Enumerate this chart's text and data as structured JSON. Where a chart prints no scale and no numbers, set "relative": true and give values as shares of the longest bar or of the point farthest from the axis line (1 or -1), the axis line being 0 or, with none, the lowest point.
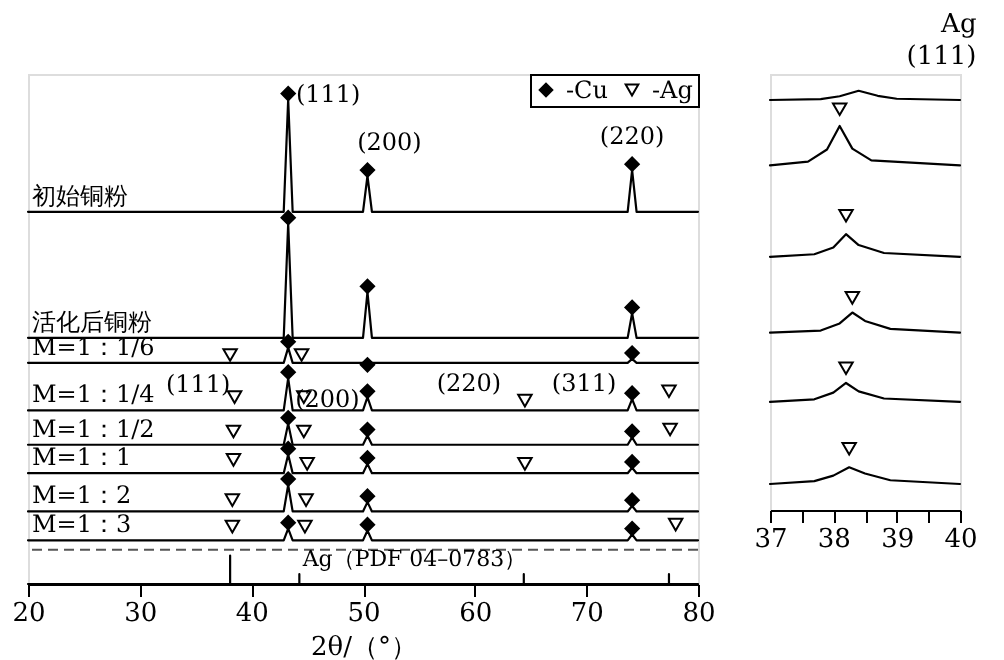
{
  "chart_data": [
    {
      "type": "line",
      "relative": true,
      "xlabel": "2θ/（°）",
      "xlim": [
        20,
        80
      ],
      "xticks": [
        20,
        30,
        40,
        50,
        60,
        70,
        80
      ],
      "tick_labels": "x",
      "grid": false,
      "legend": "top right",
      "line_style": "solid",
      "series": [
        {
          "name": "初始铜粉",
          "color": "#000000",
          "x": [
            20,
            42.9,
            43.3,
            43.7,
            50.0,
            50.4,
            50.8,
            73.7,
            74.1,
            74.5,
            80
          ],
          "values": [
            0.759,
            0.759,
            0.988,
            0.759,
            0.759,
            0.832,
            0.759,
            0.759,
            0.844,
            0.759,
            0.759
          ]
        },
        {
          "name": "活化后铜粉",
          "color": "#000000",
          "x": [
            20,
            42.9,
            43.3,
            43.7,
            50.0,
            50.4,
            50.8,
            73.7,
            74.1,
            74.5,
            80
          ],
          "values": [
            0.502,
            0.502,
            0.735,
            0.502,
            0.502,
            0.595,
            0.502,
            0.502,
            0.552,
            0.502,
            0.502
          ]
        },
        {
          "name": "M=1：1/6",
          "color": "#000000",
          "x": [
            20,
            42.9,
            43.3,
            43.7,
            50.0,
            50.4,
            50.8,
            73.7,
            74.1,
            74.5,
            80
          ],
          "values": [
            0.451,
            0.451,
            0.482,
            0.451,
            0.451,
            0.455,
            0.451,
            0.451,
            0.459,
            0.451,
            0.451
          ]
        },
        {
          "name": "M=1：1/4",
          "color": "#000000",
          "x": [
            20,
            42.9,
            43.3,
            43.7,
            50.0,
            50.4,
            50.8,
            73.7,
            74.1,
            74.5,
            80
          ],
          "values": [
            0.354,
            0.354,
            0.42,
            0.354,
            0.354,
            0.381,
            0.354,
            0.354,
            0.377,
            0.354,
            0.354
          ]
        },
        {
          "name": "M=1：1/2",
          "color": "#000000",
          "x": [
            20,
            42.9,
            43.3,
            43.7,
            50.0,
            50.4,
            50.8,
            73.7,
            74.1,
            74.5,
            80
          ],
          "values": [
            0.284,
            0.284,
            0.327,
            0.284,
            0.284,
            0.303,
            0.284,
            0.284,
            0.299,
            0.284,
            0.284
          ]
        },
        {
          "name": "M=1：1",
          "color": "#000000",
          "x": [
            20,
            42.9,
            43.3,
            43.7,
            50.0,
            50.4,
            50.8,
            73.7,
            74.1,
            74.5,
            80
          ],
          "values": [
            0.226,
            0.226,
            0.264,
            0.226,
            0.226,
            0.245,
            0.226,
            0.226,
            0.237,
            0.226,
            0.226
          ]
        },
        {
          "name": "M=1：2",
          "color": "#000000",
          "x": [
            20,
            42.9,
            43.3,
            43.7,
            50.0,
            50.4,
            50.8,
            73.7,
            74.1,
            74.5,
            80
          ],
          "values": [
            0.148,
            0.148,
            0.202,
            0.148,
            0.148,
            0.167,
            0.148,
            0.148,
            0.159,
            0.148,
            0.148
          ]
        },
        {
          "name": "M=1：3",
          "color": "#000000",
          "x": [
            20,
            42.9,
            43.3,
            43.7,
            50.0,
            50.4,
            50.8,
            73.7,
            74.1,
            74.5,
            80
          ],
          "values": [
            0.089,
            0.089,
            0.113,
            0.089,
            0.089,
            0.109,
            0.089,
            0.089,
            0.101,
            0.089,
            0.089
          ]
        },
        {
          "color": "#000000",
          "x": [
            20,
            38.1,
            38.1,
            38.1,
            44.3,
            44.3,
            44.3,
            64.4,
            64.4,
            64.4,
            77.4,
            77.4,
            77.4,
            80
          ],
          "values": [
            0,
            0,
            0.058,
            0,
            0,
            0.02,
            0,
            0,
            0.02,
            0,
            0,
            0.02,
            0,
            0
          ]
        },
        {
          "name": "-Cu",
          "type": "scatter",
          "marker": "diamond",
          "color": "#000000",
          "x": [
            43.3,
            50.4,
            74.1,
            43.3,
            50.4,
            74.1,
            43.3,
            50.4,
            74.1,
            43.3,
            50.4,
            74.1,
            43.3,
            50.4,
            74.1,
            43.3,
            50.4,
            74.1,
            43.3,
            50.4,
            74.1,
            43.3,
            50.4,
            74.1
          ],
          "values": [
            1.0,
            0.844,
            0.856,
            0.747,
            0.607,
            0.564,
            0.494,
            0.447,
            0.471,
            0.432,
            0.393,
            0.389,
            0.339,
            0.315,
            0.311,
            0.276,
            0.257,
            0.249,
            0.214,
            0.179,
            0.171,
            0.125,
            0.121,
            0.113
          ]
        },
        {
          "name": "-Ag",
          "type": "scatter",
          "marker": "triangle",
          "color": "#000000",
          "x": [
            38.1,
            44.5,
            38.5,
            44.7,
            64.5,
            77.4,
            38.4,
            44.7,
            77.5,
            38.4,
            45.0,
            64.5,
            38.3,
            44.9,
            38.3,
            44.8,
            78.0
          ],
          "values": [
            0.467,
            0.467,
            0.381,
            0.381,
            0.374,
            0.393,
            0.311,
            0.311,
            0.315,
            0.253,
            0.245,
            0.245,
            0.171,
            0.171,
            0.117,
            0.117,
            0.121
          ]
        }
      ],
      "ref_lines": [
        {
          "axis": "y",
          "value": 0.07,
          "line_style": "dashed",
          "color": "#555555"
        }
      ],
      "annotations": [
        {
          "text": "(111)",
          "x": 43.3,
          "y": 1.0
        },
        {
          "text": "(200)",
          "x": 50.4,
          "y": 0.844
        },
        {
          "text": "(220)",
          "x": 74.1,
          "y": 0.856
        },
        {
          "text": "(111)",
          "x": 43.3,
          "y": 0.432
        },
        {
          "text": "(200)",
          "x": 50.4,
          "y": 0.393
        },
        {
          "text": "(220)",
          "x": 64.5,
          "y": 0.374
        },
        {
          "text": "(311)",
          "x": 74.1,
          "y": 0.389
        },
        "Ag（PDF 04–0783）"
      ]
    },
    {
      "type": "line",
      "relative": true,
      "title": "Ag",
      "subtitle": "(111)",
      "xlim": [
        37,
        40
      ],
      "xticks": [
        37,
        {
          "value": 37.5,
          "label": null
        },
        38,
        {
          "value": 38.5,
          "label": null
        },
        39,
        {
          "value": 39.5,
          "label": null
        },
        40
      ],
      "tick_labels": "x",
      "grid": false,
      "line_style": "solid",
      "series": [
        {
          "color": "#000000",
          "x": [
            37,
            37.8,
            38.1,
            38.4,
            38.7,
            39.0,
            40
          ],
          "values": [
            0.978,
            0.98,
            0.987,
            1.0,
            0.988,
            0.981,
            0.978
          ]
        },
        {
          "color": "#000000",
          "x": [
            37,
            37.6,
            37.9,
            38.1,
            38.3,
            38.6,
            40
          ],
          "values": [
            0.822,
            0.831,
            0.86,
            0.916,
            0.862,
            0.834,
            0.822
          ]
        },
        {
          "color": "#000000",
          "x": [
            37,
            37.7,
            38.0,
            38.2,
            38.4,
            38.8,
            40
          ],
          "values": [
            0.604,
            0.61,
            0.626,
            0.658,
            0.632,
            0.613,
            0.604
          ]
        },
        {
          "color": "#000000",
          "x": [
            37,
            37.8,
            38.1,
            38.3,
            38.5,
            38.9,
            40
          ],
          "values": [
            0.423,
            0.428,
            0.445,
            0.471,
            0.451,
            0.432,
            0.423
          ]
        },
        {
          "color": "#000000",
          "x": [
            37,
            37.7,
            38.0,
            38.2,
            38.4,
            38.8,
            40
          ],
          "values": [
            0.258,
            0.264,
            0.28,
            0.303,
            0.283,
            0.266,
            0.258
          ]
        },
        {
          "color": "#000000",
          "x": [
            37,
            37.7,
            38.0,
            38.25,
            38.5,
            38.9,
            40
          ],
          "values": [
            0.062,
            0.069,
            0.082,
            0.102,
            0.087,
            0.071,
            0.062
          ]
        },
        {
          "type": "scatter",
          "marker": "triangle",
          "color": "#000000",
          "x": [
            38.1,
            38.2,
            38.3,
            38.2,
            38.25
          ],
          "values": [
            0.956,
            0.702,
            0.506,
            0.338,
            0.146
          ]
        }
      ]
    }
  ]
}
